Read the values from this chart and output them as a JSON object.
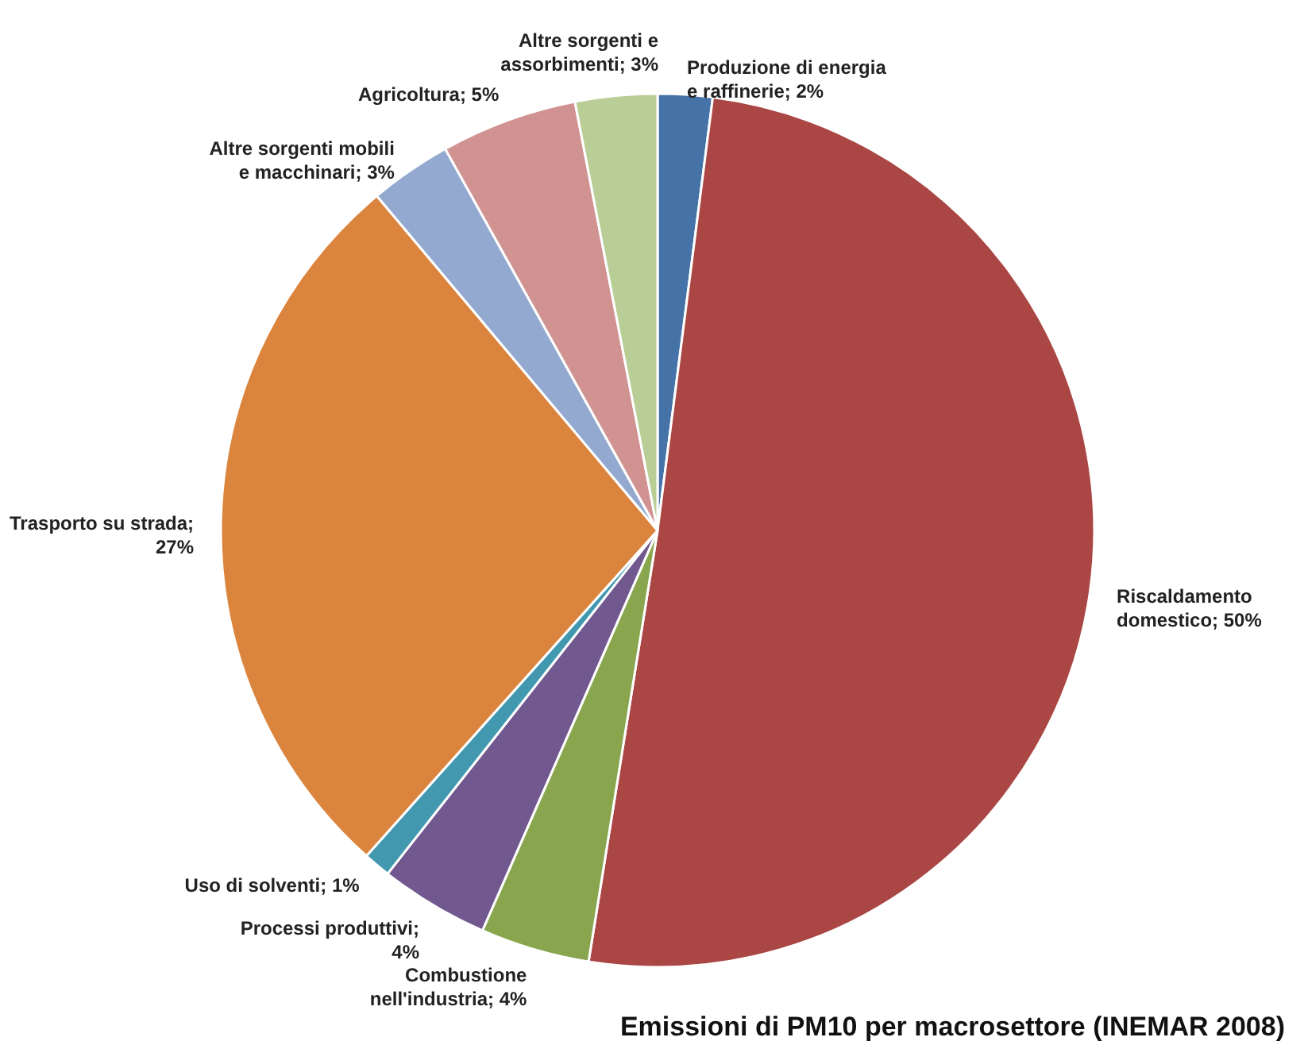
{
  "chart_data": {
    "type": "pie",
    "title": "Emissioni di PM10 per macrosettore (INEMAR 2008)",
    "categories": [
      "Produzione di energia e raffinerie; 2%",
      "Riscaldamento domestico; 50%",
      "Combustione nell'industria; 4%",
      "Processi produttivi; 4%",
      "Uso di solventi; 1%",
      "Trasporto su strada; 27%",
      "Altre sorgenti mobili e macchinari; 3%",
      "Agricoltura; 5%",
      "Altre sorgenti e assorbimenti; 3%"
    ],
    "values": [
      2,
      50,
      4,
      4,
      1,
      27,
      3,
      5,
      3
    ],
    "colors": [
      "#4572a7",
      "#aa4643",
      "#89a54e",
      "#71588f",
      "#4198af",
      "#db843d",
      "#93a9cf",
      "#d19392",
      "#b9cd96"
    ]
  }
}
